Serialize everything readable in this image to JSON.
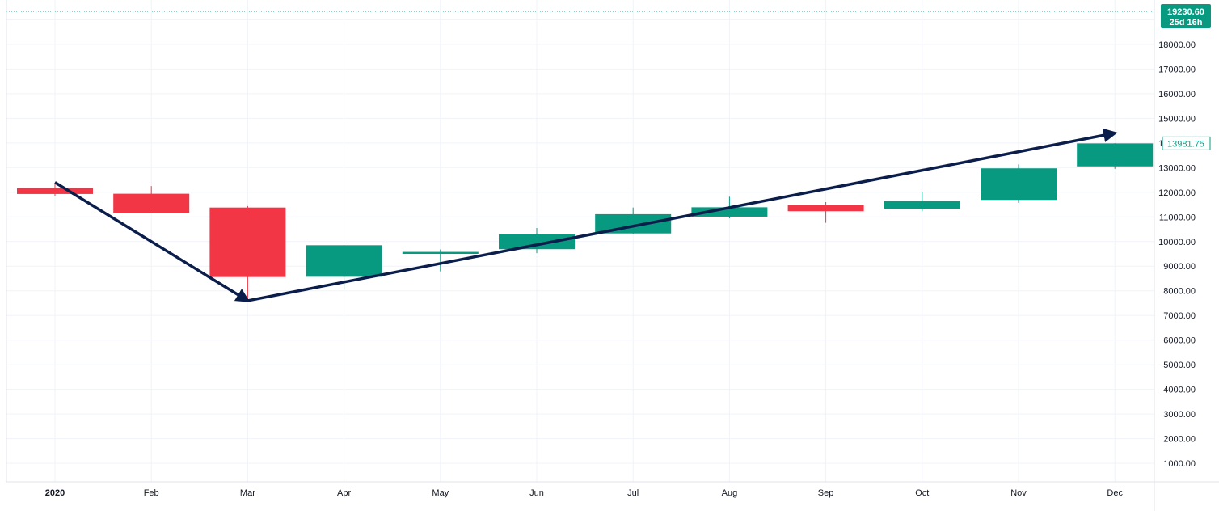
{
  "chart_data": {
    "type": "candlestick",
    "x": [
      "2020",
      "Feb",
      "Mar",
      "Apr",
      "May",
      "Jun",
      "Jul",
      "Aug",
      "Sep",
      "Oct",
      "Nov",
      "Dec"
    ],
    "ohlc": [
      {
        "open": 12170,
        "high": 12360,
        "low": 11860,
        "close": 11930
      },
      {
        "open": 11940,
        "high": 12250,
        "low": 11150,
        "close": 11170
      },
      {
        "open": 11380,
        "high": 11440,
        "low": 7620,
        "close": 8560
      },
      {
        "open": 8570,
        "high": 9860,
        "low": 8060,
        "close": 9850
      },
      {
        "open": 9500,
        "high": 9680,
        "low": 8790,
        "close": 9580
      },
      {
        "open": 9690,
        "high": 10550,
        "low": 9530,
        "close": 10300
      },
      {
        "open": 10330,
        "high": 11380,
        "low": 10300,
        "close": 11110
      },
      {
        "open": 11010,
        "high": 11820,
        "low": 10940,
        "close": 11390
      },
      {
        "open": 11470,
        "high": 11600,
        "low": 10760,
        "close": 11230
      },
      {
        "open": 11330,
        "high": 12000,
        "low": 11230,
        "close": 11640
      },
      {
        "open": 11690,
        "high": 13130,
        "low": 11570,
        "close": 12970
      },
      {
        "open": 13050,
        "high": 13990,
        "low": 12950,
        "close": 13981.75
      }
    ],
    "y_ticks": [
      "1000.00",
      "2000.00",
      "3000.00",
      "4000.00",
      "5000.00",
      "6000.00",
      "7000.00",
      "8000.00",
      "9000.00",
      "10000.00",
      "11000.00",
      "12000.00",
      "13000.00",
      "14000.00",
      "15000.00",
      "16000.00",
      "17000.00",
      "18000.00"
    ],
    "ylim": [
      250,
      19800
    ],
    "grid": true,
    "price_line": {
      "value": 19230.6,
      "label": "19230.60",
      "countdown": "25d 16h"
    },
    "last_price": {
      "value": 13981.75,
      "label": "13981.75"
    },
    "trend_arrows": [
      {
        "from": {
          "x": "2020",
          "y": 12400
        },
        "to": {
          "x": "Mar",
          "y": 7600
        }
      },
      {
        "from": {
          "x": "Mar",
          "y": 7600
        },
        "to": {
          "x": "Dec",
          "y": 14400
        }
      }
    ],
    "colors": {
      "up": "#089981",
      "down": "#f23645",
      "grid": "#f0f3fa",
      "arrow": "#0b1e4b",
      "axis_text": "#131722",
      "price_line": "#26a69a"
    }
  }
}
